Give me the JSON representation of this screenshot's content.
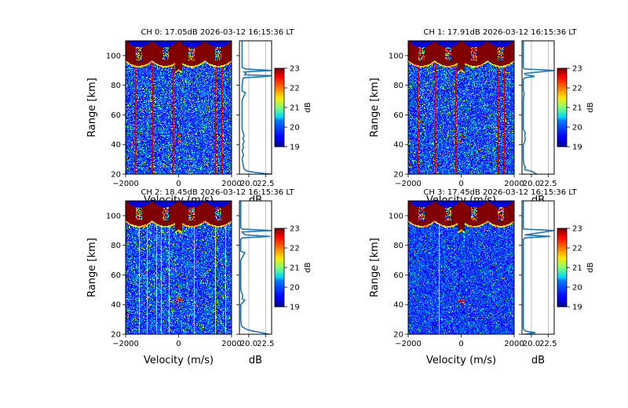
{
  "figure": {
    "background": "#ffffff"
  },
  "chart_data": [
    {
      "type": "heatmap",
      "channel": 0,
      "title": "CH 0: 17.05dB 2026-03-12 16:15:36 LT",
      "xlabel": "Velocity (m/s)",
      "ylabel": "Range [km]",
      "xlim": [
        -2000,
        2000
      ],
      "ylim": [
        20,
        110
      ],
      "xticks": [
        -2000,
        0,
        2000
      ],
      "xtick_labels": [
        "−2000",
        "0",
        "2000"
      ],
      "yticks": [
        20,
        40,
        60,
        80,
        100
      ],
      "yticks_labels": [
        "20",
        "40",
        "60",
        "80",
        "100"
      ],
      "colormap": "jet",
      "clim": [
        19,
        23
      ],
      "colorbar": {
        "label": "dB",
        "ticks": [
          19,
          20,
          21,
          22,
          23
        ],
        "tick_labels": [
          "19",
          "20",
          "21",
          "22",
          "23"
        ]
      },
      "features": {
        "saturated_band_km": [
          93,
          110
        ],
        "noise_level": 0.55,
        "vertical_lines_velocity": [
          -1650,
          -1000,
          -850,
          -200,
          1400,
          1650,
          1900
        ],
        "echo_spot": {
          "velocity": 0,
          "range_km": 45
        }
      },
      "profile": {
        "xlabel": "dB",
        "xlim": [
          18.6,
          23.4
        ],
        "xticks": [
          20.0,
          22.5
        ],
        "xtick_labels": [
          "20.0",
          "22.5"
        ],
        "range_km": [
          20,
          21,
          22,
          23,
          25,
          28,
          30,
          33,
          36,
          38,
          40,
          42,
          44,
          46,
          50,
          60,
          70,
          75,
          76,
          80,
          84,
          85,
          86,
          86.5,
          87,
          88,
          89,
          90,
          91,
          92,
          95,
          100,
          110
        ],
        "values_db": [
          23.4,
          21.2,
          19.8,
          19.4,
          19.2,
          19.1,
          19.0,
          19.2,
          19.0,
          19.2,
          19.1,
          19.3,
          19.1,
          19.3,
          19.0,
          19.0,
          19.0,
          19.5,
          19.0,
          19.0,
          19.1,
          19.2,
          22.8,
          23.4,
          19.4,
          19.6,
          19.3,
          23.4,
          19.5,
          19.0,
          19.0,
          19.0,
          19.0
        ]
      }
    },
    {
      "type": "heatmap",
      "channel": 1,
      "title": "CH 1: 17.91dB 2026-03-12 16:15:36 LT",
      "xlabel": "Velocity (m/s)",
      "ylabel": "Range [km]",
      "xlim": [
        -2000,
        2000
      ],
      "ylim": [
        20,
        110
      ],
      "xticks": [
        -2000,
        0,
        2000
      ],
      "xtick_labels": [
        "−2000",
        "0",
        "2000"
      ],
      "yticks": [
        20,
        40,
        60,
        80,
        100
      ],
      "yticks_labels": [
        "20",
        "40",
        "60",
        "80",
        "100"
      ],
      "colormap": "jet",
      "clim": [
        19,
        23
      ],
      "colorbar": {
        "label": "dB",
        "ticks": [
          19,
          20,
          21,
          22,
          23
        ],
        "tick_labels": [
          "19",
          "20",
          "21",
          "22",
          "23"
        ]
      },
      "features": {
        "saturated_band_km": [
          93,
          110
        ],
        "noise_level": 0.5,
        "vertical_lines_velocity": [
          -1650,
          -1000,
          -850,
          -200,
          1400,
          1650,
          1900
        ],
        "echo_spot": {
          "velocity": 0,
          "range_km": 45
        }
      },
      "profile": {
        "xlabel": "dB",
        "xlim": [
          18.6,
          23.4
        ],
        "xticks": [
          20.0,
          22.5
        ],
        "xtick_labels": [
          "20.0",
          "22.5"
        ],
        "range_km": [
          20,
          21,
          22,
          23,
          25,
          26,
          30,
          40,
          42,
          44,
          46,
          48,
          50,
          60,
          70,
          75,
          76,
          80,
          84,
          85,
          86,
          87,
          88,
          90,
          91,
          92,
          95,
          110
        ],
        "values_db": [
          20.8,
          20.4,
          20.0,
          19.0,
          19.1,
          18.9,
          18.8,
          18.8,
          19.0,
          19.1,
          19.0,
          19.1,
          18.8,
          18.8,
          18.8,
          18.9,
          18.8,
          18.8,
          18.8,
          19.0,
          20.5,
          19.2,
          19.0,
          23.4,
          19.0,
          18.8,
          18.8,
          18.8
        ]
      }
    },
    {
      "type": "heatmap",
      "channel": 2,
      "title": "CH 2: 18.45dB 2026-03-12 16:15:36 LT",
      "xlabel": "Velocity (m/s)",
      "ylabel": "Range [km]",
      "xlim": [
        -2000,
        2000
      ],
      "ylim": [
        20,
        110
      ],
      "xticks": [
        -2000,
        0,
        2000
      ],
      "xtick_labels": [
        "−2000",
        "0",
        "2000"
      ],
      "yticks": [
        20,
        40,
        60,
        80,
        100
      ],
      "yticks_labels": [
        "20",
        "40",
        "60",
        "80",
        "100"
      ],
      "colormap": "jet",
      "clim": [
        19,
        23
      ],
      "colorbar": {
        "label": "dB",
        "ticks": [
          19,
          20,
          21,
          22,
          23
        ],
        "tick_labels": [
          "19",
          "20",
          "21",
          "22",
          "23"
        ]
      },
      "features": {
        "saturated_band_km": [
          93,
          110
        ],
        "noise_level": 0.5,
        "vertical_lines_velocity": [
          -1500,
          -1200,
          -850,
          -650,
          -350,
          600,
          1400,
          1800
        ],
        "echo_spot": {
          "velocity": 0,
          "range_km": 43
        }
      },
      "profile": {
        "xlabel": "dB",
        "xlim": [
          18.6,
          23.4
        ],
        "xticks": [
          20.0,
          22.5
        ],
        "xtick_labels": [
          "20.0",
          "22.5"
        ],
        "range_km": [
          20,
          21,
          22,
          23,
          24,
          25,
          26,
          30,
          40,
          42,
          43,
          44,
          46,
          50,
          60,
          70,
          75,
          76,
          80,
          84,
          85,
          86,
          87,
          88,
          89,
          90,
          91,
          92,
          95,
          110
        ],
        "values_db": [
          23.0,
          22.0,
          20.8,
          19.8,
          19.4,
          19.0,
          18.9,
          18.8,
          18.8,
          19.2,
          19.4,
          19.0,
          19.1,
          18.8,
          18.8,
          18.8,
          19.4,
          18.8,
          18.8,
          18.8,
          19.0,
          23.2,
          19.5,
          19.2,
          19.0,
          23.4,
          19.0,
          18.8,
          18.8,
          18.8
        ]
      }
    },
    {
      "type": "heatmap",
      "channel": 3,
      "title": "CH 3: 17.45dB 2026-03-12 16:15:36 LT",
      "xlabel": "Velocity (m/s)",
      "ylabel": "Range [km]",
      "xlim": [
        -2000,
        2000
      ],
      "ylim": [
        20,
        110
      ],
      "xticks": [
        -2000,
        0,
        2000
      ],
      "xtick_labels": [
        "−2000",
        "0",
        "2000"
      ],
      "yticks": [
        20,
        40,
        60,
        80,
        100
      ],
      "yticks_labels": [
        "20",
        "40",
        "60",
        "80",
        "100"
      ],
      "colormap": "jet",
      "clim": [
        19,
        23
      ],
      "colorbar": {
        "label": "dB",
        "ticks": [
          19,
          20,
          21,
          22,
          23
        ],
        "tick_labels": [
          "19",
          "20",
          "21",
          "22",
          "23"
        ]
      },
      "features": {
        "saturated_band_km": [
          93,
          110
        ],
        "noise_level": 0.2,
        "vertical_lines_velocity": [
          -850
        ],
        "echo_spot": {
          "velocity": 0,
          "range_km": 43
        }
      },
      "profile": {
        "xlabel": "dB",
        "xlim": [
          18.6,
          23.4
        ],
        "xticks": [
          20.0,
          22.5
        ],
        "xtick_labels": [
          "20.0",
          "22.5"
        ],
        "range_km": [
          20,
          21,
          22,
          23,
          24,
          30,
          40,
          50,
          60,
          70,
          80,
          84,
          85,
          86,
          87,
          90,
          91,
          92,
          110
        ],
        "values_db": [
          19.0,
          20.6,
          19.2,
          18.9,
          18.8,
          18.8,
          18.8,
          18.8,
          18.8,
          18.8,
          18.8,
          18.8,
          19.0,
          22.8,
          19.0,
          23.4,
          18.8,
          18.8,
          18.8
        ]
      }
    }
  ]
}
